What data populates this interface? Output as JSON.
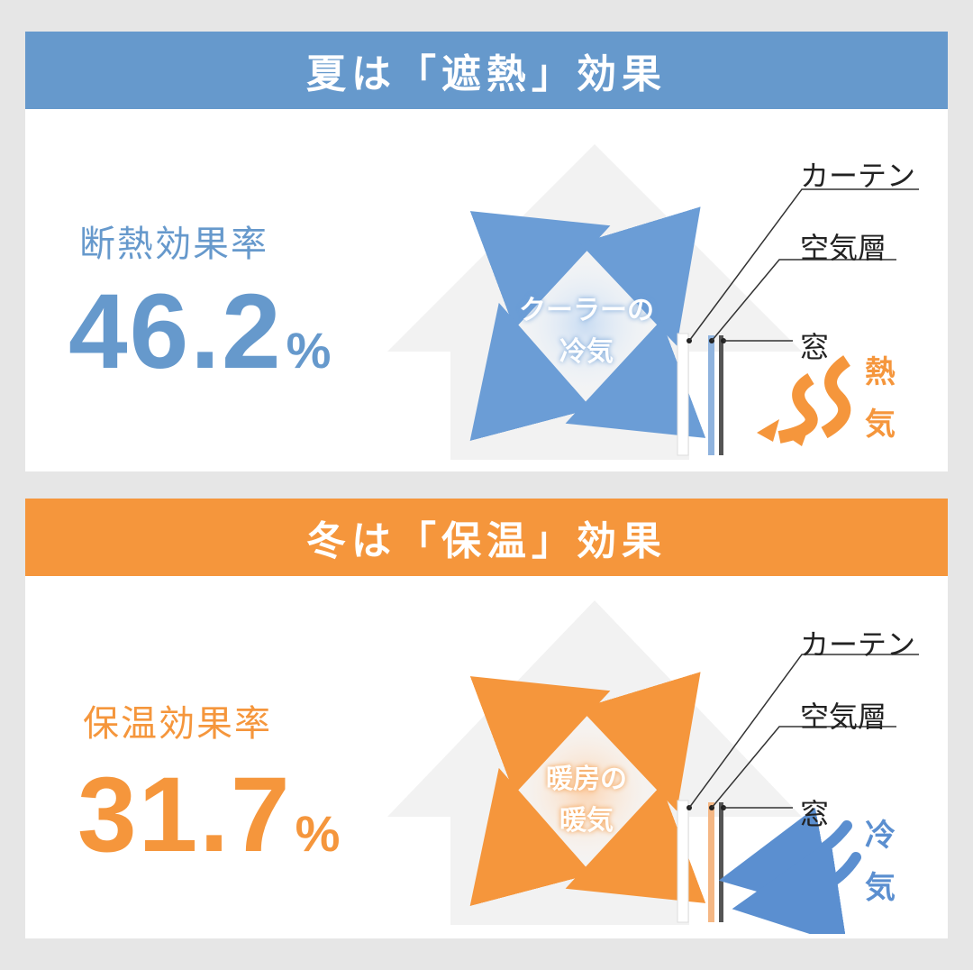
{
  "summer": {
    "header": "夏は「遮熱」効果",
    "rate_label": "断熱効果率",
    "rate_value": "46.2",
    "rate_unit": "%",
    "center_line1": "クーラーの",
    "center_line2": "冷気",
    "callout_curtain": "カーテン",
    "callout_air": "空気層",
    "callout_window": "窓",
    "side_char1": "熱",
    "side_char2": "気",
    "color": "#6699cc",
    "side_color": "#f5963c"
  },
  "winter": {
    "header": "冬は「保温」効果",
    "rate_label": "保温効果率",
    "rate_value": "31.7",
    "rate_unit": "%",
    "center_line1": "暖房の",
    "center_line2": "暖気",
    "callout_curtain": "カーテン",
    "callout_air": "空気層",
    "callout_window": "窓",
    "side_char1": "冷",
    "side_char2": "気",
    "color": "#f5963c",
    "side_color": "#5b8fd0"
  }
}
